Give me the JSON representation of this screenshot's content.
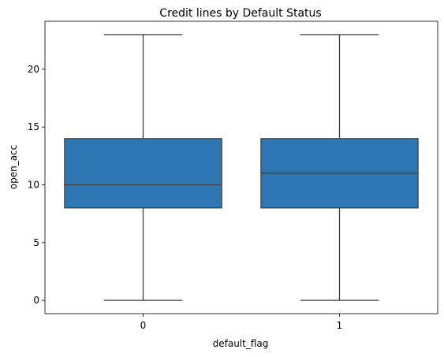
{
  "chart_data": {
    "type": "box",
    "title": "Credit lines by Default Status",
    "xlabel": "default_flag",
    "ylabel": "open_acc",
    "categories": [
      "0",
      "1"
    ],
    "ylim": [
      -1.15,
      24.15
    ],
    "yticks": [
      0,
      5,
      10,
      15,
      20
    ],
    "boxes": [
      {
        "category": "0",
        "whisker_low": 0,
        "q1": 8,
        "median": 10,
        "q3": 14,
        "whisker_high": 23
      },
      {
        "category": "1",
        "whisker_low": 0,
        "q1": 8,
        "median": 11,
        "q3": 14,
        "whisker_high": 23
      }
    ],
    "box_color": "#2f77b3",
    "line_color": "#3f3f3f",
    "grid": false,
    "legend": "none"
  }
}
